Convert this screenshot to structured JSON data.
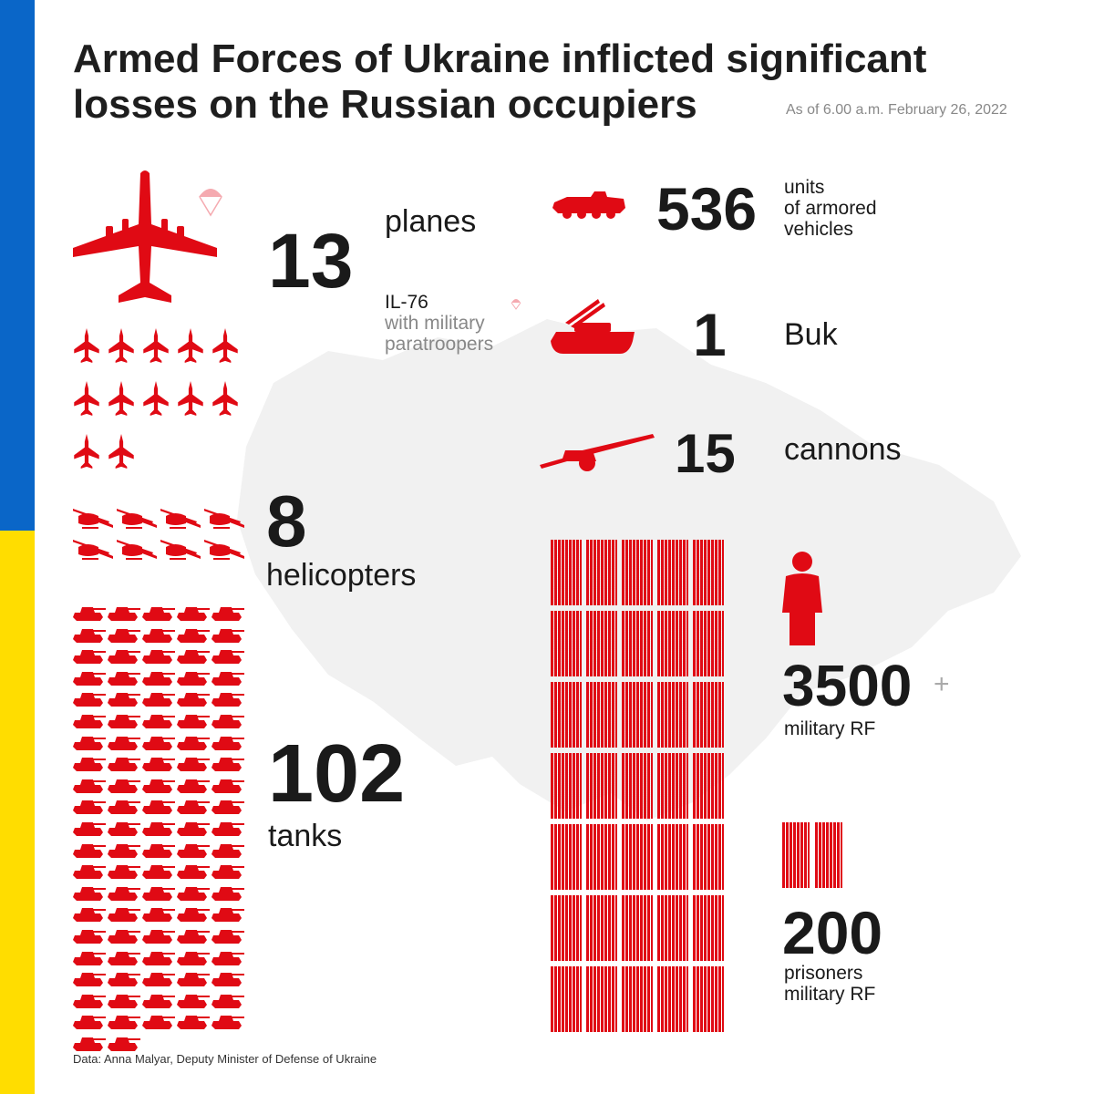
{
  "title_line1": "Armed Forces of Ukraine inflicted significant",
  "title_line2": "losses on the Russian occupiers",
  "as_of": "As of 6.00 a.m. February 26, 2022",
  "colors": {
    "accent": "#e00a14",
    "flag_blue": "#0a66c8",
    "flag_yellow": "#ffdd00",
    "map": "#f0f0f0"
  },
  "planes": {
    "value": "13",
    "label": "planes",
    "note_line1": "IL-76",
    "note_line2": "with military",
    "note_line3": "paratroopers",
    "icon_count": 12,
    "icon": "jet-fighter-icon"
  },
  "armored": {
    "value": "536",
    "label_line1": "units",
    "label_line2": "of armored",
    "label_line3": "vehicles",
    "icon": "armored-vehicle-icon"
  },
  "buk": {
    "value": "1",
    "label": "Buk",
    "icon": "buk-launcher-icon"
  },
  "cannons": {
    "value": "15",
    "label": "cannons",
    "icon": "cannon-icon"
  },
  "helicopters": {
    "value": "8",
    "label": "helicopters",
    "icon_count": 8,
    "icon": "helicopter-icon"
  },
  "tanks": {
    "value": "102",
    "label": "tanks",
    "icon_count": 102,
    "icon": "tank-icon"
  },
  "military": {
    "value": "3500",
    "plus": "+",
    "label": "military RF",
    "icon": "person-icon"
  },
  "prisoners": {
    "value": "200",
    "label_line1": "prisoners",
    "label_line2": "military RF"
  },
  "source": "Data: Anna Malyar, Deputy Minister of Defense of Ukraine"
}
